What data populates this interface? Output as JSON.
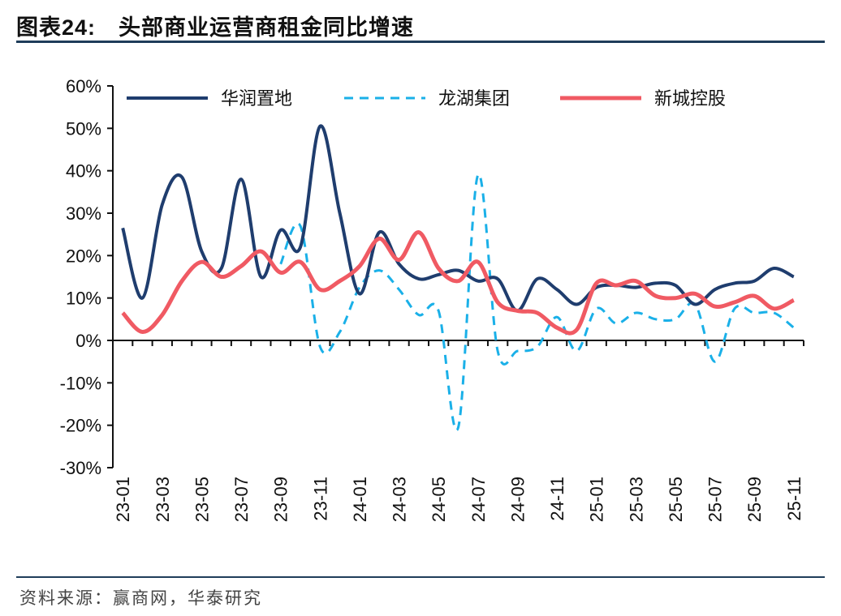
{
  "header": {
    "figure_no": "图表24:",
    "title": "头部商业运营商租金同比增速"
  },
  "footer": {
    "source": "资料来源：赢商网，华泰研究"
  },
  "chart_data": {
    "type": "line",
    "title": "头部商业运营商租金同比增速",
    "xlabel": "",
    "ylabel": "",
    "ylim": [
      -30,
      60
    ],
    "yticks": [
      60,
      50,
      40,
      30,
      20,
      10,
      0,
      -10,
      -20,
      -30
    ],
    "ytick_labels": [
      "60%",
      "50%",
      "40%",
      "30%",
      "20%",
      "10%",
      "0%",
      "-10%",
      "-20%",
      "-30%"
    ],
    "x": [
      "23-01",
      "23-02",
      "23-03",
      "23-04",
      "23-05",
      "23-06",
      "23-07",
      "23-08",
      "23-09",
      "23-10",
      "23-11",
      "23-12",
      "24-01",
      "24-02",
      "24-03",
      "24-04",
      "24-05",
      "24-06",
      "24-07",
      "24-08",
      "24-09",
      "24-10",
      "24-11",
      "24-12",
      "25-01",
      "25-02",
      "25-03",
      "25-04",
      "25-05",
      "25-06",
      "25-07",
      "25-08",
      "25-09",
      "25-10",
      "25-11"
    ],
    "xtick_labels": [
      "23-01",
      "23-03",
      "23-05",
      "23-07",
      "23-09",
      "23-11",
      "24-01",
      "24-03",
      "24-05",
      "24-07",
      "24-09",
      "24-11",
      "25-01",
      "25-03",
      "25-05",
      "25-07",
      "25-09",
      "25-11"
    ],
    "legend_position": "top",
    "series": [
      {
        "name": "华润置地",
        "color": "#1f3d6e",
        "style": "solid",
        "values": [
          26.5,
          10,
          32,
          38.5,
          21,
          17,
          38,
          15,
          26,
          22,
          50.5,
          30,
          11,
          25.5,
          18,
          14.5,
          15.5,
          16.5,
          14,
          14.5,
          7,
          14.5,
          12,
          8.5,
          12.5,
          13,
          12.5,
          13.5,
          13,
          8.5,
          12,
          13.5,
          14,
          17,
          15
        ]
      },
      {
        "name": "龙湖集团",
        "color": "#1ab0e8",
        "style": "dashed",
        "values": [
          null,
          null,
          null,
          null,
          null,
          null,
          null,
          null,
          18,
          27,
          -1.5,
          2,
          12.5,
          16.5,
          12,
          6,
          7,
          -20.5,
          39,
          -2.5,
          -2.5,
          -1.5,
          5.5,
          -2.5,
          7.5,
          4,
          6.5,
          5,
          5,
          8.5,
          -5,
          7.5,
          6.5,
          6.5,
          3
        ]
      },
      {
        "name": "新城控股",
        "color": "#f05a63",
        "style": "solid",
        "values": [
          6.5,
          2,
          6,
          14,
          18.5,
          15,
          17.5,
          21,
          16,
          18.5,
          12,
          14,
          17.5,
          24,
          19,
          25.5,
          17,
          14,
          18.5,
          9,
          7,
          6.5,
          3,
          2.5,
          13.5,
          13,
          14,
          10.5,
          10,
          11,
          8,
          9,
          10.5,
          7.5,
          9.5
        ]
      }
    ]
  }
}
